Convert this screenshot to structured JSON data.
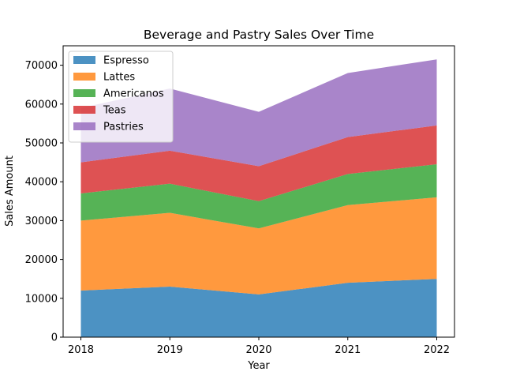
{
  "chart_data": {
    "type": "area",
    "stacked": true,
    "title": "Beverage and Pastry Sales Over Time",
    "xlabel": "Year",
    "ylabel": "Sales Amount",
    "x": [
      "2018",
      "2019",
      "2020",
      "2021",
      "2022"
    ],
    "ylim": [
      0,
      75000
    ],
    "yticks": [
      0,
      10000,
      20000,
      30000,
      40000,
      50000,
      60000,
      70000
    ],
    "grid": false,
    "legend_position": "top-left",
    "series": [
      {
        "name": "Espresso",
        "color": "#1f77b4",
        "values": [
          12000,
          13000,
          11000,
          14000,
          15000
        ]
      },
      {
        "name": "Lattes",
        "color": "#ff7f0e",
        "values": [
          18000,
          19000,
          17000,
          20000,
          21000
        ]
      },
      {
        "name": "Americanos",
        "color": "#2ca02c",
        "values": [
          7000,
          7500,
          7000,
          8000,
          8500
        ]
      },
      {
        "name": "Teas",
        "color": "#d62728",
        "values": [
          8000,
          8500,
          9000,
          9500,
          10000
        ]
      },
      {
        "name": "Pastries",
        "color": "#9467bd",
        "values": [
          14000,
          16000,
          14000,
          16500,
          17000
        ]
      }
    ]
  }
}
